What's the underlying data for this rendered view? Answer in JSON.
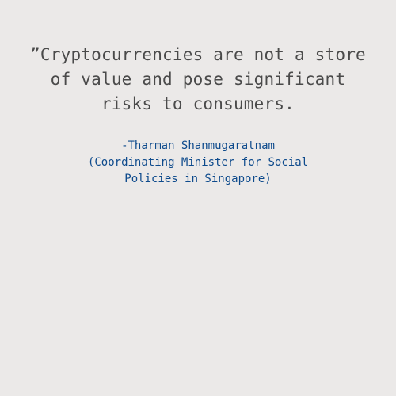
{
  "quote": {
    "lines": [
      "”Cryptocurrencies are not a store",
      "of value and pose significant",
      "risks to consumers."
    ]
  },
  "attribution": {
    "lines": [
      "-Tharman Shanmugaratnam",
      "(Coordinating Minister for Social",
      "Policies in Singapore)"
    ]
  },
  "colors": {
    "background": "#ebe9e8",
    "quote_text": "#4a4a4a",
    "attribution_text": "#0d4a8c"
  }
}
